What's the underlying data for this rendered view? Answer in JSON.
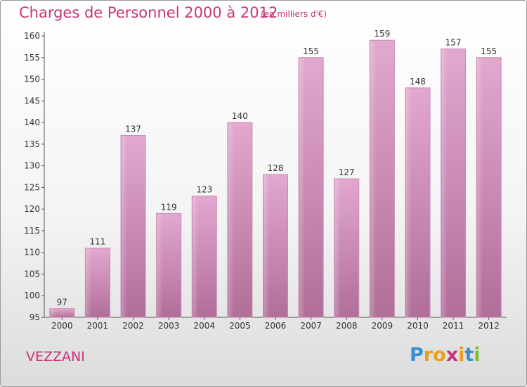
{
  "header": {
    "title": "Charges de Personnel 2000 à 2012",
    "subtitle": "(en milliers d'€)"
  },
  "footer": {
    "commune": "VEZZANI",
    "logo_letters": [
      "P",
      "r",
      "o",
      "x",
      "i",
      "t",
      "i"
    ],
    "logo_colors": [
      "#3a8fd0",
      "#e8a020",
      "#e8a020",
      "#c8337a",
      "#e8a020",
      "#3a8fd0",
      "#7bbf3a"
    ]
  },
  "chart_data": {
    "type": "bar",
    "title": "Charges de Personnel 2000 à 2012",
    "subtitle": "(en milliers d'€)",
    "xlabel": "",
    "ylabel": "",
    "categories": [
      "2000",
      "2001",
      "2002",
      "2003",
      "2004",
      "2005",
      "2006",
      "2007",
      "2008",
      "2009",
      "2010",
      "2011",
      "2012"
    ],
    "values": [
      97,
      111,
      137,
      119,
      123,
      140,
      128,
      155,
      127,
      159,
      148,
      157,
      155
    ],
    "data_labels": [
      "97",
      "111",
      "137",
      "119",
      "123",
      "140",
      "128",
      "155",
      "127",
      "159",
      "148",
      "157",
      "155"
    ],
    "ylim": [
      95,
      160
    ],
    "yticks": [
      95,
      100,
      105,
      110,
      115,
      120,
      125,
      130,
      135,
      140,
      145,
      150,
      155,
      160
    ],
    "grid": false,
    "legend": "none",
    "bar_color": "#c97fae"
  }
}
